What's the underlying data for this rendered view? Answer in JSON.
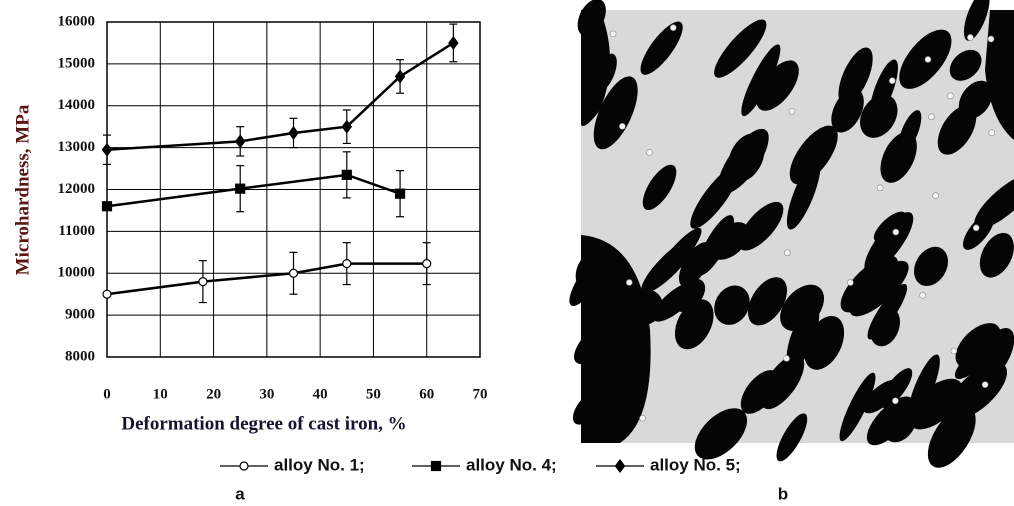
{
  "chart_data": {
    "type": "line",
    "y_label": "Microhardness, MPa",
    "x_label": "Deformation degree of cast iron, %",
    "xlim": [
      0,
      70
    ],
    "xticks": [
      0,
      10,
      20,
      30,
      40,
      50,
      60,
      70
    ],
    "ylim": [
      8000,
      16000
    ],
    "yticks": [
      8000,
      9000,
      10000,
      11000,
      12000,
      13000,
      14000,
      15000,
      16000
    ],
    "grid": true,
    "series": [
      {
        "name": "alloy No. 1;",
        "color": "#000000",
        "marker": "circle",
        "x": [
          0,
          18,
          35,
          45,
          60
        ],
        "values": [
          9500,
          9800,
          10000,
          10230,
          10230
        ],
        "errors": [
          null,
          500,
          500,
          500,
          500
        ]
      },
      {
        "name": "alloy No. 4;",
        "color": "#000000",
        "marker": "square",
        "x": [
          0,
          25,
          45,
          55
        ],
        "values": [
          11600,
          12020,
          12350,
          11900
        ],
        "errors": [
          null,
          550,
          550,
          550
        ]
      },
      {
        "name": "alloy No. 5;",
        "color": "#000000",
        "marker": "diamond",
        "x": [
          0,
          25,
          35,
          45,
          55,
          65
        ],
        "values": [
          12950,
          13150,
          13350,
          13500,
          14700,
          15500
        ],
        "errors": [
          350,
          350,
          350,
          400,
          400,
          450
        ]
      }
    ]
  },
  "panel_labels": [
    "a",
    "b"
  ]
}
